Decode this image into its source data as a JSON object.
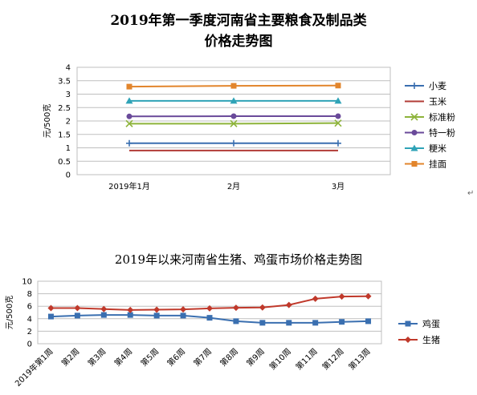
{
  "stray_mark": "↵",
  "chart_data": [
    {
      "type": "line",
      "title_line1": "2019年第一季度河南省主要粮食及制品类",
      "title_line2": "价格走势图",
      "ylabel": "元/500克",
      "xlabel": "",
      "categories": [
        "2019年1月",
        "2月",
        "3月"
      ],
      "ylim": [
        0,
        4
      ],
      "yticks": [
        "0",
        "0.5",
        "1",
        "1.5",
        "2",
        "2.5",
        "3",
        "3.5",
        "4"
      ],
      "grid": true,
      "legend_position": "right",
      "series": [
        {
          "name": "小麦",
          "values": [
            1.17,
            1.17,
            1.17
          ],
          "color": "#3a6fb0",
          "marker": "plus"
        },
        {
          "name": "玉米",
          "values": [
            0.9,
            0.9,
            0.9
          ],
          "color": "#b23b36",
          "marker": "none"
        },
        {
          "name": "标准粉",
          "values": [
            1.9,
            1.9,
            1.92
          ],
          "color": "#8db33a",
          "marker": "x"
        },
        {
          "name": "特一粉",
          "values": [
            2.17,
            2.18,
            2.18
          ],
          "color": "#6a4a9a",
          "marker": "circle"
        },
        {
          "name": "粳米",
          "values": [
            2.75,
            2.75,
            2.75
          ],
          "color": "#2fa3b7",
          "marker": "triangle"
        },
        {
          "name": "挂面",
          "values": [
            3.28,
            3.31,
            3.32
          ],
          "color": "#e2852c",
          "marker": "square"
        }
      ]
    },
    {
      "type": "line",
      "title": "2019年以来河南省生猪、鸡蛋市场价格走势图",
      "ylabel": "元/500克",
      "xlabel": "",
      "categories": [
        "2019年第1周",
        "第2周",
        "第3周",
        "第4周",
        "第5周",
        "第6周",
        "第7周",
        "第8周",
        "第9周",
        "第10周",
        "第11周",
        "第12周",
        "第13周"
      ],
      "ylim": [
        0,
        10
      ],
      "yticks": [
        "0",
        "2",
        "4",
        "6",
        "8",
        "10"
      ],
      "grid": true,
      "legend_position": "right",
      "series": [
        {
          "name": "鸡蛋",
          "values": [
            4.35,
            4.5,
            4.6,
            4.6,
            4.5,
            4.5,
            4.15,
            3.6,
            3.35,
            3.35,
            3.35,
            3.5,
            3.6
          ],
          "color": "#3a6fb0",
          "marker": "square"
        },
        {
          "name": "生猪",
          "values": [
            5.7,
            5.7,
            5.55,
            5.4,
            5.45,
            5.5,
            5.65,
            5.75,
            5.8,
            6.2,
            7.2,
            7.55,
            7.6
          ],
          "color": "#c0392b",
          "marker": "diamond"
        }
      ]
    }
  ]
}
